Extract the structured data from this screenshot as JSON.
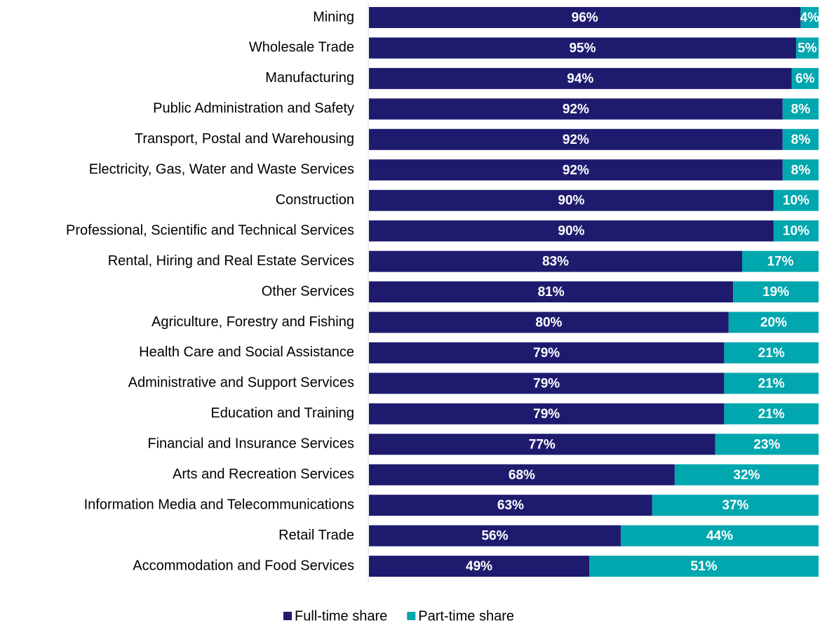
{
  "chart_data": {
    "type": "stacked-bar-horizontal",
    "categories": [
      "Mining",
      "Wholesale Trade",
      "Manufacturing",
      "Public Administration and Safety",
      "Transport, Postal and Warehousing",
      "Electricity, Gas, Water and Waste Services",
      "Construction",
      "Professional, Scientific and Technical Services",
      "Rental, Hiring and Real Estate Services",
      "Other Services",
      "Agriculture, Forestry and Fishing",
      "Health Care and Social Assistance",
      "Administrative and Support Services",
      "Education and Training",
      "Financial and Insurance Services",
      "Arts and Recreation Services",
      "Information Media and Telecommunications",
      "Retail Trade",
      "Accommodation and Food Services"
    ],
    "series": [
      {
        "name": "Full-time share",
        "color": "#1e1b6f",
        "values": [
          96,
          95,
          94,
          92,
          92,
          92,
          90,
          90,
          83,
          81,
          80,
          79,
          79,
          79,
          77,
          68,
          63,
          56,
          49
        ],
        "value_labels": [
          "96%",
          "95%",
          "94%",
          "92%",
          "92%",
          "92%",
          "90%",
          "90%",
          "83%",
          "81%",
          "80%",
          "79%",
          "79%",
          "79%",
          "77%",
          "68%",
          "63%",
          "56%",
          "49%"
        ]
      },
      {
        "name": "Part-time share",
        "color": "#00a7ae",
        "values": [
          4,
          5,
          6,
          8,
          8,
          8,
          10,
          10,
          17,
          19,
          20,
          21,
          21,
          21,
          23,
          32,
          37,
          44,
          51
        ],
        "value_labels": [
          "4%",
          "5%",
          "6%",
          "8%",
          "8%",
          "8%",
          "10%",
          "10%",
          "17%",
          "19%",
          "20%",
          "21%",
          "21%",
          "21%",
          "23%",
          "32%",
          "37%",
          "44%",
          "51%"
        ]
      }
    ],
    "xlim": [
      0,
      100
    ],
    "legend": "bottom"
  }
}
